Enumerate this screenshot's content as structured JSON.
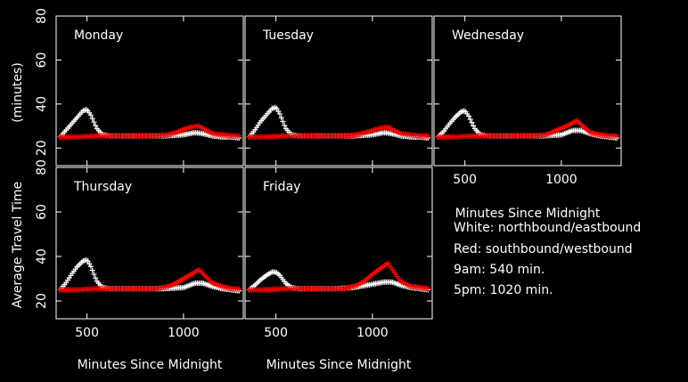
{
  "chart_data": {
    "type": "scatter",
    "xlabel": "Minutes Since Midnight",
    "ylabel": "Average Travel Time",
    "ylabel_unit": "(minutes)",
    "xlim": [
      340,
      1310
    ],
    "ylim": [
      12,
      80
    ],
    "xticks": [
      500,
      1000
    ],
    "yticks": [
      20,
      40,
      60,
      80
    ],
    "legend_lines": [
      "White: northbound/eastbound",
      "Red: southbound/westbound",
      "9am: 540 min.",
      "5pm: 1020 min."
    ],
    "series_colors": {
      "white": "#ffffff",
      "red": "#ff0000"
    },
    "panels": [
      {
        "label": "Monday",
        "white": {
          "x": [
            360,
            390,
            420,
            450,
            480,
            500,
            520,
            550,
            580,
            620,
            700,
            800,
            900,
            1000,
            1060,
            1100,
            1150,
            1200,
            1250,
            1290
          ],
          "y": [
            25,
            28,
            31,
            34,
            37,
            37.5,
            35,
            29,
            26,
            25.5,
            25.5,
            25.5,
            25.5,
            26,
            27,
            26.5,
            25.5,
            25,
            25,
            24.5
          ]
        },
        "red": {
          "x": [
            360,
            450,
            550,
            650,
            750,
            850,
            920,
            960,
            1000,
            1040,
            1080,
            1110,
            1150,
            1200,
            1250,
            1290
          ],
          "y": [
            25,
            25,
            25.5,
            25.5,
            25.5,
            25.5,
            26,
            27,
            28.5,
            29.5,
            30,
            28.5,
            26.5,
            26,
            25.5,
            25.5
          ]
        }
      },
      {
        "label": "Tuesday",
        "white": {
          "x": [
            360,
            390,
            420,
            450,
            480,
            500,
            520,
            550,
            580,
            620,
            700,
            800,
            900,
            1000,
            1060,
            1100,
            1150,
            1200,
            1250,
            1290
          ],
          "y": [
            25,
            28,
            32,
            35,
            38,
            38.5,
            35.5,
            29,
            26,
            25.5,
            25.5,
            25.5,
            25.5,
            26,
            27,
            26.5,
            25.5,
            25,
            25,
            24.5
          ]
        },
        "red": {
          "x": [
            360,
            450,
            550,
            650,
            750,
            850,
            920,
            960,
            1000,
            1040,
            1080,
            1110,
            1150,
            1200,
            1250,
            1290
          ],
          "y": [
            25,
            25,
            25.5,
            25.5,
            25.5,
            25.5,
            26,
            27,
            28,
            29,
            29.5,
            28,
            26.5,
            26,
            25.5,
            25.5
          ]
        }
      },
      {
        "label": "Wednesday",
        "white": {
          "x": [
            360,
            390,
            420,
            450,
            480,
            500,
            520,
            550,
            580,
            620,
            700,
            800,
            900,
            1000,
            1060,
            1100,
            1150,
            1200,
            1250,
            1290
          ],
          "y": [
            25,
            27.5,
            31,
            34,
            36.5,
            37,
            34.5,
            29,
            26,
            25.5,
            25.5,
            25.5,
            25.5,
            26,
            28,
            28,
            26.5,
            25.5,
            25,
            24.5
          ]
        },
        "red": {
          "x": [
            360,
            450,
            550,
            650,
            750,
            850,
            920,
            960,
            1000,
            1040,
            1080,
            1110,
            1150,
            1200,
            1250,
            1290
          ],
          "y": [
            25,
            25,
            25.5,
            25.5,
            25.5,
            25.5,
            26,
            27.5,
            29,
            30.5,
            32.5,
            30,
            27,
            26,
            25.5,
            25.5
          ]
        }
      },
      {
        "label": "Thursday",
        "white": {
          "x": [
            360,
            390,
            420,
            450,
            480,
            500,
            520,
            550,
            580,
            620,
            700,
            800,
            900,
            1000,
            1060,
            1100,
            1150,
            1200,
            1250,
            1290
          ],
          "y": [
            25,
            28,
            32,
            35.5,
            38,
            38.5,
            35.5,
            29,
            26,
            25.5,
            25.5,
            25.5,
            25.5,
            26,
            28,
            28,
            26.5,
            25.5,
            25,
            24.5
          ]
        },
        "red": {
          "x": [
            360,
            450,
            550,
            650,
            750,
            850,
            920,
            960,
            1000,
            1040,
            1080,
            1110,
            1150,
            1200,
            1250,
            1290
          ],
          "y": [
            25,
            25,
            25.5,
            25.5,
            25.5,
            25.5,
            26.5,
            28,
            30,
            32,
            34,
            31.5,
            28,
            26.5,
            25.5,
            25.5
          ]
        }
      },
      {
        "label": "Friday",
        "white": {
          "x": [
            360,
            390,
            420,
            450,
            480,
            500,
            520,
            550,
            580,
            620,
            700,
            800,
            900,
            1000,
            1060,
            1100,
            1150,
            1200,
            1250,
            1290
          ],
          "y": [
            25,
            27,
            29.5,
            31.5,
            33,
            33,
            31.5,
            28,
            26,
            25.5,
            25.5,
            25.5,
            26,
            27.5,
            28.5,
            28.5,
            27,
            26,
            25.5,
            25
          ]
        },
        "red": {
          "x": [
            360,
            450,
            550,
            650,
            750,
            850,
            920,
            960,
            1000,
            1040,
            1080,
            1110,
            1150,
            1200,
            1250,
            1290
          ],
          "y": [
            25,
            25,
            25.5,
            25.5,
            25.5,
            25.5,
            27,
            29,
            32,
            34.5,
            37,
            33,
            28.5,
            26.5,
            26,
            25.5
          ]
        }
      }
    ]
  }
}
